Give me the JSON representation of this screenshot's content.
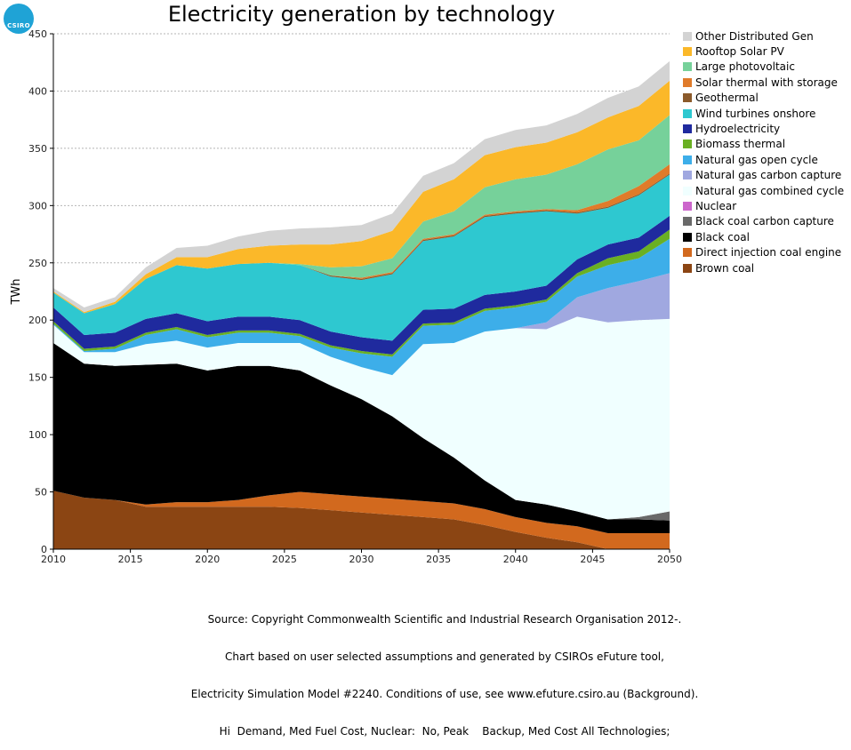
{
  "logo": {
    "text": "CSIRO"
  },
  "chart_data": {
    "type": "area",
    "stacked": true,
    "title": "Electricity generation by technology",
    "xlabel": "",
    "ylabel": "TWh",
    "xlim": [
      2010,
      2050
    ],
    "ylim": [
      0,
      450
    ],
    "x_ticks": [
      2010,
      2015,
      2020,
      2025,
      2030,
      2035,
      2040,
      2045,
      2050
    ],
    "y_ticks": [
      0,
      50,
      100,
      150,
      200,
      250,
      300,
      350,
      400,
      450
    ],
    "grid": "horizontal dashed",
    "legend_position": "right",
    "x": [
      2010,
      2012,
      2014,
      2016,
      2018,
      2020,
      2022,
      2024,
      2026,
      2028,
      2030,
      2032,
      2034,
      2036,
      2038,
      2040,
      2042,
      2044,
      2046,
      2048,
      2050
    ],
    "series": [
      {
        "name": "Brown coal",
        "color": "#8b4513",
        "values": [
          51,
          45,
          43,
          37,
          37,
          37,
          37,
          37,
          36,
          34,
          32,
          30,
          28,
          26,
          21,
          15,
          10,
          6,
          0,
          0,
          0
        ]
      },
      {
        "name": "Direct injection coal engine",
        "color": "#d2691e",
        "values": [
          0,
          0,
          0,
          2,
          4,
          4,
          6,
          10,
          14,
          14,
          14,
          14,
          14,
          14,
          14,
          13,
          13,
          14,
          14,
          14,
          14
        ]
      },
      {
        "name": "Black coal",
        "color": "#000000",
        "values": [
          129,
          117,
          117,
          122,
          121,
          115,
          117,
          113,
          106,
          95,
          85,
          72,
          55,
          40,
          25,
          15,
          16,
          13,
          12,
          12,
          11
        ]
      },
      {
        "name": "Black coal carbon capture",
        "color": "#696969",
        "values": [
          0,
          0,
          0,
          0,
          0,
          0,
          0,
          0,
          0,
          0,
          0,
          0,
          0,
          0,
          0,
          0,
          0,
          0,
          0,
          2,
          8
        ]
      },
      {
        "name": "Nuclear",
        "color": "#cc66cc",
        "values": [
          0,
          0,
          0,
          0,
          0,
          0,
          0,
          0,
          0,
          0,
          0,
          0,
          0,
          0,
          0,
          0,
          0,
          0,
          0,
          0,
          0
        ]
      },
      {
        "name": "Natural gas combined cycle",
        "color": "#f0ffff",
        "values": [
          16,
          10,
          12,
          18,
          20,
          20,
          20,
          20,
          24,
          25,
          28,
          36,
          82,
          100,
          130,
          150,
          153,
          170,
          172,
          172,
          168
        ]
      },
      {
        "name": "Natural gas carbon capture",
        "color": "#a0a8e0",
        "values": [
          0,
          0,
          0,
          0,
          0,
          0,
          0,
          0,
          0,
          0,
          0,
          0,
          0,
          0,
          0,
          0,
          6,
          17,
          30,
          34,
          40
        ]
      },
      {
        "name": "Natural gas open cycle",
        "color": "#3daee9",
        "values": [
          1,
          1,
          3,
          8,
          10,
          9,
          9,
          9,
          6,
          8,
          12,
          16,
          16,
          16,
          18,
          18,
          18,
          18,
          20,
          20,
          30
        ]
      },
      {
        "name": "Biomass thermal",
        "color": "#6ab023",
        "values": [
          2,
          2,
          2,
          2,
          2,
          2,
          2,
          2,
          2,
          2,
          2,
          2,
          2,
          2,
          2,
          2,
          2,
          3,
          6,
          6,
          8
        ]
      },
      {
        "name": "Hydroelectricity",
        "color": "#1f2a9e",
        "values": [
          12,
          12,
          12,
          12,
          12,
          12,
          12,
          12,
          12,
          12,
          12,
          12,
          12,
          12,
          12,
          12,
          12,
          12,
          12,
          12,
          12
        ]
      },
      {
        "name": "Wind turbines onshore",
        "color": "#2ec8d0",
        "values": [
          13,
          19,
          25,
          35,
          42,
          46,
          46,
          47,
          48,
          48,
          50,
          58,
          60,
          63,
          68,
          68,
          65,
          40,
          32,
          37,
          36
        ]
      },
      {
        "name": "Geothermal",
        "color": "#8b5a2b",
        "values": [
          0,
          0,
          0,
          0,
          0,
          0,
          0,
          0,
          0,
          1,
          1,
          1,
          1,
          1,
          1,
          1,
          1,
          1,
          1,
          1,
          1
        ]
      },
      {
        "name": "Solar thermal with storage",
        "color": "#e07b2a",
        "values": [
          0,
          0,
          0,
          0,
          0,
          0,
          0,
          0,
          0,
          0,
          1,
          1,
          1,
          1,
          1,
          1,
          1,
          2,
          5,
          7,
          8
        ]
      },
      {
        "name": "Large photovoltaic",
        "color": "#76d19a",
        "values": [
          0,
          0,
          0,
          0,
          0,
          0,
          0,
          0,
          1,
          7,
          10,
          12,
          15,
          20,
          24,
          28,
          30,
          40,
          45,
          40,
          43
        ]
      },
      {
        "name": "Rooftop Solar PV",
        "color": "#fbb829",
        "values": [
          1,
          1,
          2,
          4,
          7,
          10,
          13,
          15,
          17,
          20,
          22,
          24,
          26,
          28,
          28,
          28,
          28,
          28,
          28,
          30,
          30
        ]
      },
      {
        "name": "Other Distributed Gen",
        "color": "#d3d3d3",
        "values": [
          3,
          4,
          4,
          6,
          8,
          10,
          11,
          13,
          14,
          15,
          14,
          15,
          14,
          14,
          14,
          15,
          15,
          16,
          17,
          17,
          17
        ]
      }
    ]
  },
  "source_lines": [
    "Source: Copyright Commonwealth Scientific and Industrial Research Organisation 2012-.",
    "Chart based on user selected assumptions and generated by CSIROs eFuture tool,",
    "Electricity Simulation Model #2240. Conditions of use, see www.efuture.csiro.au (Background).",
    "Hi  Demand, Med Fuel Cost, Nuclear:  No, Peak    Backup, Med Cost All Technologies;"
  ]
}
